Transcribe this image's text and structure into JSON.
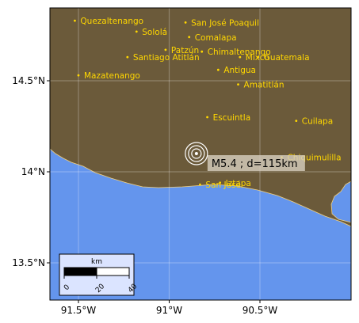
{
  "map": {
    "axes": {
      "x_ticks": [
        "91.5°W",
        "91°W",
        "90.5°W"
      ],
      "y_ticks": [
        "14.5°N",
        "14°N",
        "13.5°N"
      ]
    },
    "colors": {
      "land": "#6b5a3a",
      "water": "#6495ed",
      "coastline": "#f0d080",
      "place": "#ffd700",
      "grid": "#9a8f70"
    },
    "places": [
      {
        "name": "Quezaltenango",
        "lon": -91.52,
        "lat": 14.83
      },
      {
        "name": "Sololá",
        "lon": -91.18,
        "lat": 14.77
      },
      {
        "name": "San José Poaquil",
        "lon": -90.91,
        "lat": 14.82
      },
      {
        "name": "Comalapa",
        "lon": -90.89,
        "lat": 14.74
      },
      {
        "name": "Patzún",
        "lon": -91.02,
        "lat": 14.67
      },
      {
        "name": "Chimaltenango",
        "lon": -90.82,
        "lat": 14.66
      },
      {
        "name": "Santiago Atitlán",
        "lon": -91.23,
        "lat": 14.63
      },
      {
        "name": "Mixco",
        "lon": -90.61,
        "lat": 14.63
      },
      {
        "name": "Guatemala",
        "lon": -90.51,
        "lat": 14.63
      },
      {
        "name": "Mazatenango",
        "lon": -91.5,
        "lat": 14.53
      },
      {
        "name": "Antigua",
        "lon": -90.73,
        "lat": 14.56
      },
      {
        "name": "Amatitlán",
        "lon": -90.62,
        "lat": 14.48
      },
      {
        "name": "Escuintla",
        "lon": -90.79,
        "lat": 14.3
      },
      {
        "name": "Cuilapa",
        "lon": -90.3,
        "lat": 14.28
      },
      {
        "name": "Chiquimulilla",
        "lon": -90.38,
        "lat": 14.08
      },
      {
        "name": "Iztapa",
        "lon": -90.72,
        "lat": 13.94
      },
      {
        "name": "San José",
        "lon": -90.83,
        "lat": 13.93
      }
    ],
    "event": {
      "lon": -90.85,
      "lat": 14.1,
      "label": "M5.4 ; d=115km"
    },
    "scalebar": {
      "unit": "km",
      "ticks": [
        "0",
        "20",
        "40"
      ]
    }
  }
}
